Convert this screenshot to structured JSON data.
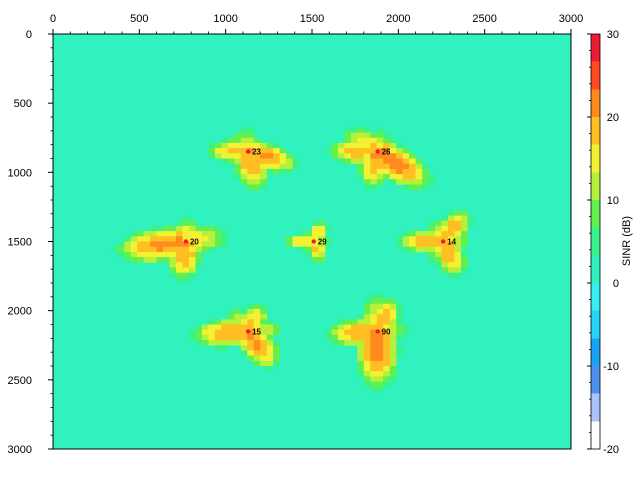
{
  "chart_data": {
    "type": "heatmap",
    "title": "",
    "xlabel": "",
    "ylabel": "",
    "xlim": [
      0,
      3000
    ],
    "ylim": [
      0,
      3000
    ],
    "x_ticks": [
      0,
      500,
      1000,
      1500,
      2000,
      2500,
      3000
    ],
    "y_ticks": [
      0,
      500,
      1000,
      1500,
      2000,
      2500,
      3000
    ],
    "x_axis_position": "top",
    "y_axis_inverted": true,
    "colorbar": {
      "label": "SINR (dB)",
      "range": [
        -20,
        30
      ],
      "ticks": [
        30,
        20,
        10,
        0,
        -10,
        -20
      ],
      "colors": [
        "#ffffff",
        "#a8c4f8",
        "#4f8ff0",
        "#1aa3f5",
        "#26d3f5",
        "#35f0ee",
        "#30f2bf",
        "#3af28a",
        "#62f050",
        "#b6f03a",
        "#f2f232",
        "#ffbf22",
        "#ff8a1e",
        "#ff4a22",
        "#ee1c32"
      ]
    },
    "background_value": 3,
    "sites": [
      {
        "label": "23",
        "x": 1130,
        "y": 850,
        "lobes": [
          {
            "dir": 20,
            "len": 190,
            "wid": 95,
            "peak": 21
          },
          {
            "dir": 80,
            "len": 185,
            "wid": 92,
            "peak": 20
          },
          {
            "dir": 180,
            "len": 160,
            "wid": 80,
            "peak": 18
          }
        ]
      },
      {
        "label": "26",
        "x": 1880,
        "y": 850,
        "lobes": [
          {
            "dir": 40,
            "len": 240,
            "wid": 110,
            "peak": 22
          },
          {
            "dir": 100,
            "len": 170,
            "wid": 85,
            "peak": 20
          },
          {
            "dir": 180,
            "len": 190,
            "wid": 90,
            "peak": 19
          }
        ]
      },
      {
        "label": "20",
        "x": 770,
        "y": 1500,
        "lobes": [
          {
            "dir": 170,
            "len": 260,
            "wid": 115,
            "peak": 21
          },
          {
            "dir": 95,
            "len": 180,
            "wid": 95,
            "peak": 20
          },
          {
            "dir": 280,
            "len": 110,
            "wid": 60,
            "peak": 16
          }
        ]
      },
      {
        "label": "29",
        "x": 1510,
        "y": 1500,
        "lobes": [
          {
            "dir": 180,
            "len": 110,
            "wid": 60,
            "peak": 18
          },
          {
            "dir": 75,
            "len": 110,
            "wid": 60,
            "peak": 17
          },
          {
            "dir": 290,
            "len": 110,
            "wid": 60,
            "peak": 17
          }
        ]
      },
      {
        "label": "14",
        "x": 2260,
        "y": 1500,
        "lobes": [
          {
            "dir": 70,
            "len": 170,
            "wid": 85,
            "peak": 20
          },
          {
            "dir": 180,
            "len": 170,
            "wid": 85,
            "peak": 19
          },
          {
            "dir": 300,
            "len": 170,
            "wid": 85,
            "peak": 19
          }
        ]
      },
      {
        "label": "15",
        "x": 1130,
        "y": 2150,
        "lobes": [
          {
            "dir": 60,
            "len": 190,
            "wid": 95,
            "peak": 21
          },
          {
            "dir": 175,
            "len": 210,
            "wid": 100,
            "peak": 20
          },
          {
            "dir": 290,
            "len": 140,
            "wid": 75,
            "peak": 18
          }
        ]
      },
      {
        "label": "90",
        "x": 1880,
        "y": 2150,
        "lobes": [
          {
            "dir": 90,
            "len": 260,
            "wid": 110,
            "peak": 22
          },
          {
            "dir": 175,
            "len": 190,
            "wid": 95,
            "peak": 20
          },
          {
            "dir": 290,
            "len": 170,
            "wid": 85,
            "peak": 19
          }
        ]
      }
    ]
  }
}
